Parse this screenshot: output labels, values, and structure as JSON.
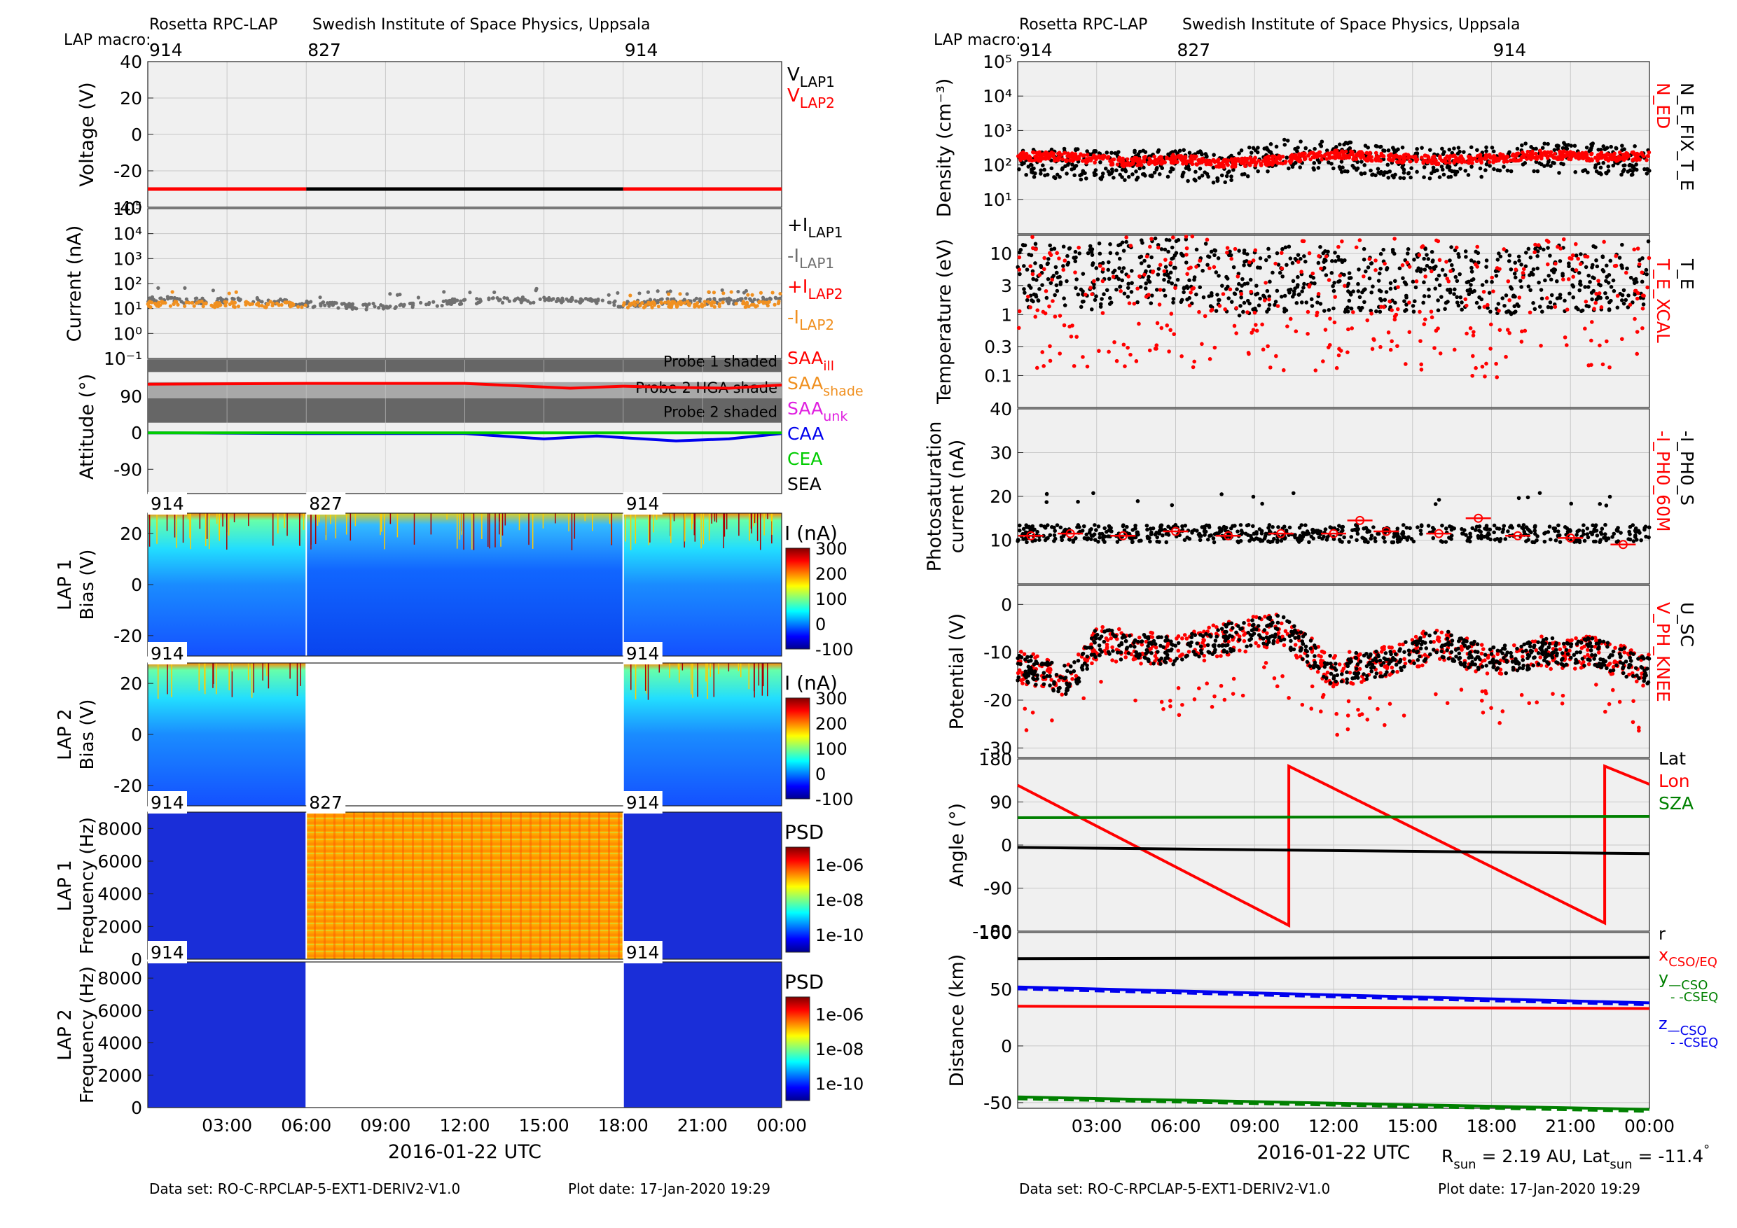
{
  "colors": {
    "black": "#000000",
    "red": "#ff0000",
    "gray": "#707070",
    "orange": "#f09020",
    "magenta": "#e020e0",
    "blue": "#0000ee",
    "green": "#00cc00",
    "darkgreen": "#008000",
    "panel_bg": "#f0f0f0",
    "shade_dark": "#666666",
    "shade_light": "#a8a8a8"
  },
  "left": {
    "header": {
      "title": "Rosetta RPC-LAP",
      "institute": "Swedish Institute of Space Physics, Uppsala",
      "macro_label": "LAP macro:",
      "macros": [
        "914",
        "827",
        "914"
      ]
    },
    "footer": {
      "dataset": "Data set: RO-C-RPCLAP-5-EXT1-DERIV2-V1.0",
      "plotdate": "Plot date: 17-Jan-2020 19:29"
    },
    "xlabel": "2016-01-22 UTC",
    "xticks": [
      "03:00",
      "06:00",
      "09:00",
      "12:00",
      "15:00",
      "18:00",
      "21:00",
      "00:00"
    ]
  },
  "right": {
    "header": {
      "title": "Rosetta RPC-LAP",
      "institute": "Swedish Institute of Space Physics, Uppsala",
      "macro_label": "LAP macro:",
      "macros": [
        "914",
        "827",
        "914"
      ]
    },
    "footer": {
      "dataset": "Data set: RO-C-RPCLAP-5-EXT1-DERIV2-V1.0",
      "plotdate": "Plot date: 17-Jan-2020 19:29"
    },
    "xlabel": "2016-01-22 UTC",
    "xticks": [
      "03:00",
      "06:00",
      "09:00",
      "12:00",
      "15:00",
      "18:00",
      "21:00",
      "00:00"
    ],
    "sun": {
      "r_label": "R",
      "r_sub": "sun",
      "r_value": " = 2.19 AU, Lat",
      "lat_sub": "sun",
      "lat_value": " = -11.4",
      "deg": "°"
    }
  },
  "chart_data": [
    {
      "type": "line",
      "id": "voltage",
      "ylabel": "Voltage (V)",
      "ylim": [
        -40,
        40
      ],
      "yticks": [
        "40",
        "20",
        "0",
        "-20",
        "-40"
      ],
      "legend": [
        {
          "text": "V",
          "sub": "LAP1",
          "color": "black"
        },
        {
          "text": "V",
          "sub": "LAP2",
          "color": "red"
        }
      ],
      "series": [
        {
          "color": "red",
          "x": [
            0,
            6
          ],
          "y": [
            -30,
            -30
          ]
        },
        {
          "color": "black",
          "x": [
            6,
            18
          ],
          "y": [
            -30,
            -30
          ]
        },
        {
          "color": "red",
          "x": [
            18,
            24
          ],
          "y": [
            -30,
            -30
          ]
        }
      ]
    },
    {
      "type": "scatter",
      "id": "current",
      "ylabel": "Current (nA)",
      "yscale": "log",
      "ylim": [
        0.1,
        100000
      ],
      "yticks": [
        "10⁵",
        "10⁴",
        "10³",
        "10²",
        "10¹",
        "10⁰",
        "10⁻¹"
      ],
      "legend": [
        {
          "text": "+I",
          "sub": "LAP1",
          "color": "black"
        },
        {
          "text": "-I",
          "sub": "LAP1",
          "color": "gray"
        },
        {
          "text": "+I",
          "sub": "LAP2",
          "color": "red"
        },
        {
          "text": "-I",
          "sub": "LAP2",
          "color": "orange"
        }
      ],
      "series": [
        {
          "name": "-I LAP1",
          "color": "gray",
          "x": [
            0,
            2,
            4,
            6,
            8,
            10,
            12,
            14,
            16,
            18,
            20,
            22,
            24
          ],
          "y": [
            25,
            20,
            22,
            15,
            12,
            13,
            20,
            22,
            22,
            15,
            20,
            20,
            22
          ]
        },
        {
          "name": "-I LAP2",
          "color": "orange",
          "x": [
            0,
            3,
            6,
            18,
            21,
            24
          ],
          "y": [
            15,
            15,
            14,
            14,
            15,
            15
          ]
        }
      ]
    },
    {
      "type": "line",
      "id": "attitude",
      "ylabel": "Attitude (°)",
      "ylim": [
        -150,
        180
      ],
      "yticks": [
        "90",
        "0",
        "-90"
      ],
      "bands": [
        {
          "label": "Probe 1 shaded",
          "y0": 150,
          "y1": 180,
          "color": "shade_dark"
        },
        {
          "label": "Probe 2 HGA shade",
          "y0": 85,
          "y1": 125,
          "color": "shade_light"
        },
        {
          "label": "Probe 2 shaded",
          "y0": 25,
          "y1": 85,
          "color": "shade_dark"
        }
      ],
      "legend": [
        {
          "text": "SAA",
          "sub": "ill",
          "color": "red"
        },
        {
          "text": "SAA",
          "sub": "shade",
          "color": "orange"
        },
        {
          "text": "SAA",
          "sub": "unk",
          "color": "magenta"
        },
        {
          "text": "CAA",
          "color": "blue"
        },
        {
          "text": "CEA",
          "color": "green"
        },
        {
          "text": "SEA",
          "color": "black"
        }
      ],
      "series": [
        {
          "name": "SAA ill",
          "color": "red",
          "x": [
            0,
            6,
            12,
            16,
            18,
            20,
            22,
            24
          ],
          "y": [
            120,
            122,
            122,
            110,
            115,
            112,
            110,
            118
          ]
        },
        {
          "name": "CAA",
          "color": "blue",
          "x": [
            0,
            6,
            12,
            15,
            17,
            20,
            22,
            24
          ],
          "y": [
            0,
            -2,
            -2,
            -15,
            -8,
            -20,
            -15,
            -2
          ]
        },
        {
          "name": "CEA",
          "color": "green",
          "x": [
            0,
            24
          ],
          "y": [
            0,
            0
          ]
        }
      ]
    },
    {
      "type": "heatmap",
      "id": "lap1bias",
      "ylabel": [
        "LAP 1",
        "Bias (V)"
      ],
      "ylim": [
        -28,
        28
      ],
      "yticks": [
        "20",
        "0",
        "-20"
      ],
      "macros": [
        "914",
        "827",
        "914"
      ],
      "colorbar": {
        "label": "I (nA)",
        "ticks": [
          "300",
          "200",
          "100",
          "0",
          "-100"
        ]
      }
    },
    {
      "type": "heatmap",
      "id": "lap2bias",
      "ylabel": [
        "LAP 2",
        "Bias (V)"
      ],
      "ylim": [
        -28,
        28
      ],
      "yticks": [
        "20",
        "0",
        "-20"
      ],
      "macros": [
        "914",
        "914"
      ],
      "colorbar": {
        "label": "I (nA)",
        "ticks": [
          "300",
          "200",
          "100",
          "0",
          "-100"
        ]
      }
    },
    {
      "type": "heatmap",
      "id": "lap1freq",
      "ylabel": [
        "LAP 1",
        "Frequency (Hz)"
      ],
      "ylim": [
        0,
        9000
      ],
      "yticks": [
        "8000",
        "6000",
        "4000",
        "2000",
        "0"
      ],
      "macros": [
        "914",
        "827",
        "914"
      ],
      "colorbar": {
        "label": "PSD",
        "ticks": [
          "1e-06",
          "1e-08",
          "1e-10"
        ]
      }
    },
    {
      "type": "heatmap",
      "id": "lap2freq",
      "ylabel": [
        "LAP 2",
        "Frequency (Hz)"
      ],
      "ylim": [
        0,
        9000
      ],
      "yticks": [
        "8000",
        "6000",
        "4000",
        "2000",
        "0"
      ],
      "macros": [
        "914",
        "914"
      ],
      "colorbar": {
        "label": "PSD",
        "ticks": [
          "1e-06",
          "1e-08",
          "1e-10"
        ]
      }
    },
    {
      "type": "scatter",
      "id": "density",
      "ylabel": "Density (cm⁻³)",
      "yscale": "log",
      "ylim": [
        1,
        100000
      ],
      "yticks": [
        "10⁵",
        "10⁴",
        "10³",
        "10²",
        "10¹"
      ],
      "legend": [
        {
          "text": "N_ED",
          "color": "red"
        },
        {
          "text": "N_E_FIX_T_E",
          "color": "black"
        }
      ],
      "series": [
        {
          "name": "N_ED",
          "color": "red",
          "x": [
            0,
            2,
            4,
            6,
            8,
            10,
            12,
            14,
            16,
            18,
            20,
            22,
            24
          ],
          "y": [
            180,
            170,
            120,
            150,
            110,
            140,
            200,
            160,
            140,
            150,
            200,
            170,
            180
          ]
        },
        {
          "name": "N_E_FIX_T_E",
          "color": "black",
          "x": [
            0,
            2,
            4,
            6,
            8,
            10,
            12,
            14,
            16,
            18,
            20,
            22,
            24
          ],
          "y": [
            120,
            110,
            90,
            100,
            80,
            200,
            180,
            120,
            110,
            130,
            160,
            150,
            140
          ]
        }
      ]
    },
    {
      "type": "scatter",
      "id": "temperature",
      "ylabel": "Temperature (eV)",
      "yscale": "log",
      "ylim": [
        0.03,
        20
      ],
      "yticks": [
        "10",
        "3",
        "1",
        "0.3",
        "0.1"
      ],
      "legend": [
        {
          "text": "T_E_XCAL",
          "color": "red"
        },
        {
          "text": "T_E",
          "color": "black"
        }
      ],
      "series": [
        {
          "name": "T_E",
          "color": "black",
          "x": [
            0,
            2,
            4,
            6,
            8,
            10,
            12,
            14,
            16,
            18,
            20,
            22,
            24
          ],
          "y": [
            6,
            5,
            6,
            7,
            4,
            5,
            5,
            5,
            5,
            4,
            5,
            5,
            6
          ]
        }
      ]
    },
    {
      "type": "scatter",
      "id": "photosat",
      "ylabel": [
        "Photosaturation",
        "current (nA)"
      ],
      "ylim": [
        0,
        40
      ],
      "yticks": [
        "40",
        "30",
        "20",
        "10"
      ],
      "legend": [
        {
          "text": "-I_PH0_60M",
          "color": "red"
        },
        {
          "text": "-I_PH0_S",
          "color": "black"
        }
      ],
      "series": [
        {
          "name": "-I_PH0_60M",
          "color": "red",
          "x": [
            0.5,
            2,
            4,
            6,
            8,
            10,
            12,
            13,
            14,
            16,
            17.5,
            19,
            21,
            23
          ],
          "y": [
            11,
            11.5,
            11,
            12,
            11,
            11.5,
            11.5,
            14.5,
            12,
            11.5,
            15,
            11,
            10.5,
            9
          ]
        }
      ]
    },
    {
      "type": "scatter",
      "id": "potential",
      "ylabel": "Potential (V)",
      "ylim": [
        -32,
        4
      ],
      "yticks": [
        "0",
        "-10",
        "-20",
        "-30"
      ],
      "legend": [
        {
          "text": "V_PH_KNEE",
          "color": "red"
        },
        {
          "text": "U_SC",
          "color": "black"
        }
      ],
      "series": [
        {
          "name": "U_SC",
          "color": "black",
          "x": [
            0,
            2,
            3,
            6,
            8,
            10,
            12,
            14,
            16,
            18,
            20,
            22,
            24
          ],
          "y": [
            -13,
            -16,
            -8,
            -10,
            -7,
            -5,
            -14,
            -12,
            -8,
            -12,
            -10,
            -10,
            -14
          ]
        }
      ]
    },
    {
      "type": "line",
      "id": "angle",
      "ylabel": "Angle (°)",
      "ylim": [
        -180,
        180
      ],
      "yticks": [
        "180",
        "90",
        "0",
        "-90",
        "-180"
      ],
      "legend": [
        {
          "text": "Lat",
          "color": "black"
        },
        {
          "text": "Lon",
          "color": "red"
        },
        {
          "text": "SZA",
          "color": "darkgreen"
        }
      ],
      "series": [
        {
          "name": "Lon",
          "color": "red",
          "x": [
            0,
            10.3,
            10.3,
            22.3,
            22.3,
            24
          ],
          "y": [
            125,
            -168,
            165,
            -163,
            165,
            127
          ]
        },
        {
          "name": "SZA",
          "color": "darkgreen",
          "x": [
            0,
            24
          ],
          "y": [
            57,
            60
          ]
        },
        {
          "name": "Lat",
          "color": "black",
          "x": [
            0,
            24
          ],
          "y": [
            -5,
            -18
          ]
        }
      ]
    },
    {
      "type": "line",
      "id": "distance",
      "ylabel": "Distance (km)",
      "ylim": [
        -55,
        100
      ],
      "yticks": [
        "100",
        "50",
        "0",
        "-50"
      ],
      "legend": [
        {
          "text": "r",
          "color": "black"
        },
        {
          "text": "x",
          "sub": "CSO/EQ",
          "color": "red"
        },
        {
          "text": "y",
          "sub": "—CSO",
          "color": "darkgreen"
        },
        {
          "text": "- -CSEQ",
          "color": "darkgreen"
        },
        {
          "text": "z",
          "sub": "—CSO",
          "color": "blue"
        },
        {
          "text": "- -CSEQ",
          "color": "blue"
        }
      ],
      "series": [
        {
          "name": "r",
          "color": "black",
          "x": [
            0,
            24
          ],
          "y": [
            77,
            78
          ]
        },
        {
          "name": "z CSO",
          "color": "blue",
          "x": [
            0,
            24
          ],
          "y": [
            52,
            38
          ]
        },
        {
          "name": "x CSO/EQ",
          "color": "red",
          "x": [
            0,
            24
          ],
          "y": [
            35,
            33
          ]
        },
        {
          "name": "y CSO",
          "color": "darkgreen",
          "x": [
            0,
            24
          ],
          "y": [
            -45,
            -56
          ]
        }
      ]
    }
  ]
}
